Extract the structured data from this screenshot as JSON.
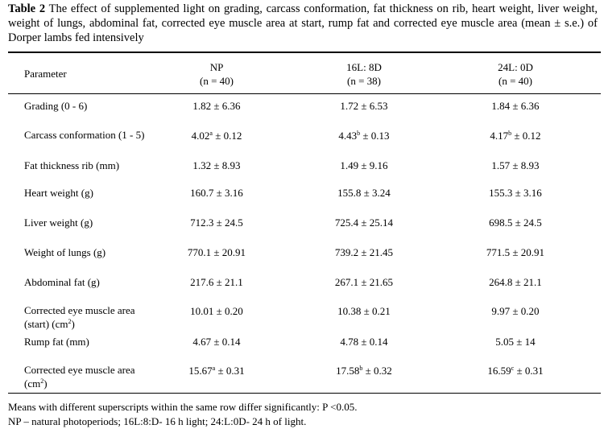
{
  "caption": {
    "label": "Table 2",
    "text": "The effect of supplemented light on  grading, carcass conformation, fat thickness on rib, heart weight, liver weight, weight of lungs, abdominal fat, corrected eye muscle area at start, rump fat and corrected eye muscle area (mean ± s.e.) of Dorper lambs fed intensively"
  },
  "table": {
    "header": [
      [
        "Parameter"
      ],
      [
        "NP",
        "(n = 40)"
      ],
      [
        "16L: 8D",
        "(n = 38)"
      ],
      [
        "24L: 0D",
        "(n = 40)"
      ]
    ],
    "rows": [
      [
        [
          "Grading (0 - 6)"
        ],
        [
          "1.82 ± 6.36"
        ],
        [
          "1.72 ± 6.53"
        ],
        [
          "1.84 ± 6.36"
        ]
      ],
      [
        [
          "Carcass conformation (1 - 5)"
        ],
        [
          "4.02",
          {
            "sup": "a"
          },
          " ± 0.12"
        ],
        [
          "4.43",
          {
            "sup": "b"
          },
          " ± 0.13"
        ],
        [
          "4.17",
          {
            "sup": "b"
          },
          " ± 0.12"
        ]
      ],
      [
        [
          "Fat thickness rib (mm)"
        ],
        [
          "1.32 ± 8.93"
        ],
        [
          "1.49 ± 9.16"
        ],
        [
          "1.57 ± 8.93"
        ]
      ],
      [
        [
          "Heart weight (g)"
        ],
        [
          "160.7 ± 3.16"
        ],
        [
          "155.8 ± 3.24"
        ],
        [
          "155.3 ± 3.16"
        ]
      ],
      [
        [
          "Liver weight (g)"
        ],
        [
          "712.3 ± 24.5"
        ],
        [
          "725.4 ± 25.14"
        ],
        [
          "698.5 ± 24.5"
        ]
      ],
      [
        [
          "Weight of lungs (g)"
        ],
        [
          "770.1 ± 20.91"
        ],
        [
          "739.2 ± 21.45"
        ],
        [
          "771.5 ± 20.91"
        ]
      ],
      [
        [
          "Abdominal fat (g)"
        ],
        [
          "217.6 ± 21.1"
        ],
        [
          "267.1 ± 21.65"
        ],
        [
          "264.8 ± 21.1"
        ]
      ],
      [
        [
          "Corrected eye muscle area (start) (cm",
          {
            "sup": "2"
          },
          ")"
        ],
        [
          "10.01 ± 0.20"
        ],
        [
          "10.38 ± 0.21"
        ],
        [
          "9.97 ± 0.20"
        ]
      ],
      [
        [
          "Rump fat (mm)"
        ],
        [
          "4.67 ± 0.14"
        ],
        [
          "4.78 ± 0.14"
        ],
        [
          "5.05 ± 14"
        ]
      ],
      [
        [
          "Corrected eye muscle area (cm",
          {
            "sup": "2"
          },
          ")"
        ],
        [
          "15.67",
          {
            "sup": "a"
          },
          " ± 0.31"
        ],
        [
          "17.58",
          {
            "sup": "b"
          },
          " ± 0.32"
        ],
        [
          "16.59",
          {
            "sup": "c"
          },
          " ± 0.31"
        ]
      ]
    ]
  },
  "footnotes": [
    "Means with different superscripts within the same row differ significantly:  P <0.05.",
    "NP – natural photoperiods; 16L:8:D- 16 h light; 24:L:0D- 24 h of light."
  ]
}
